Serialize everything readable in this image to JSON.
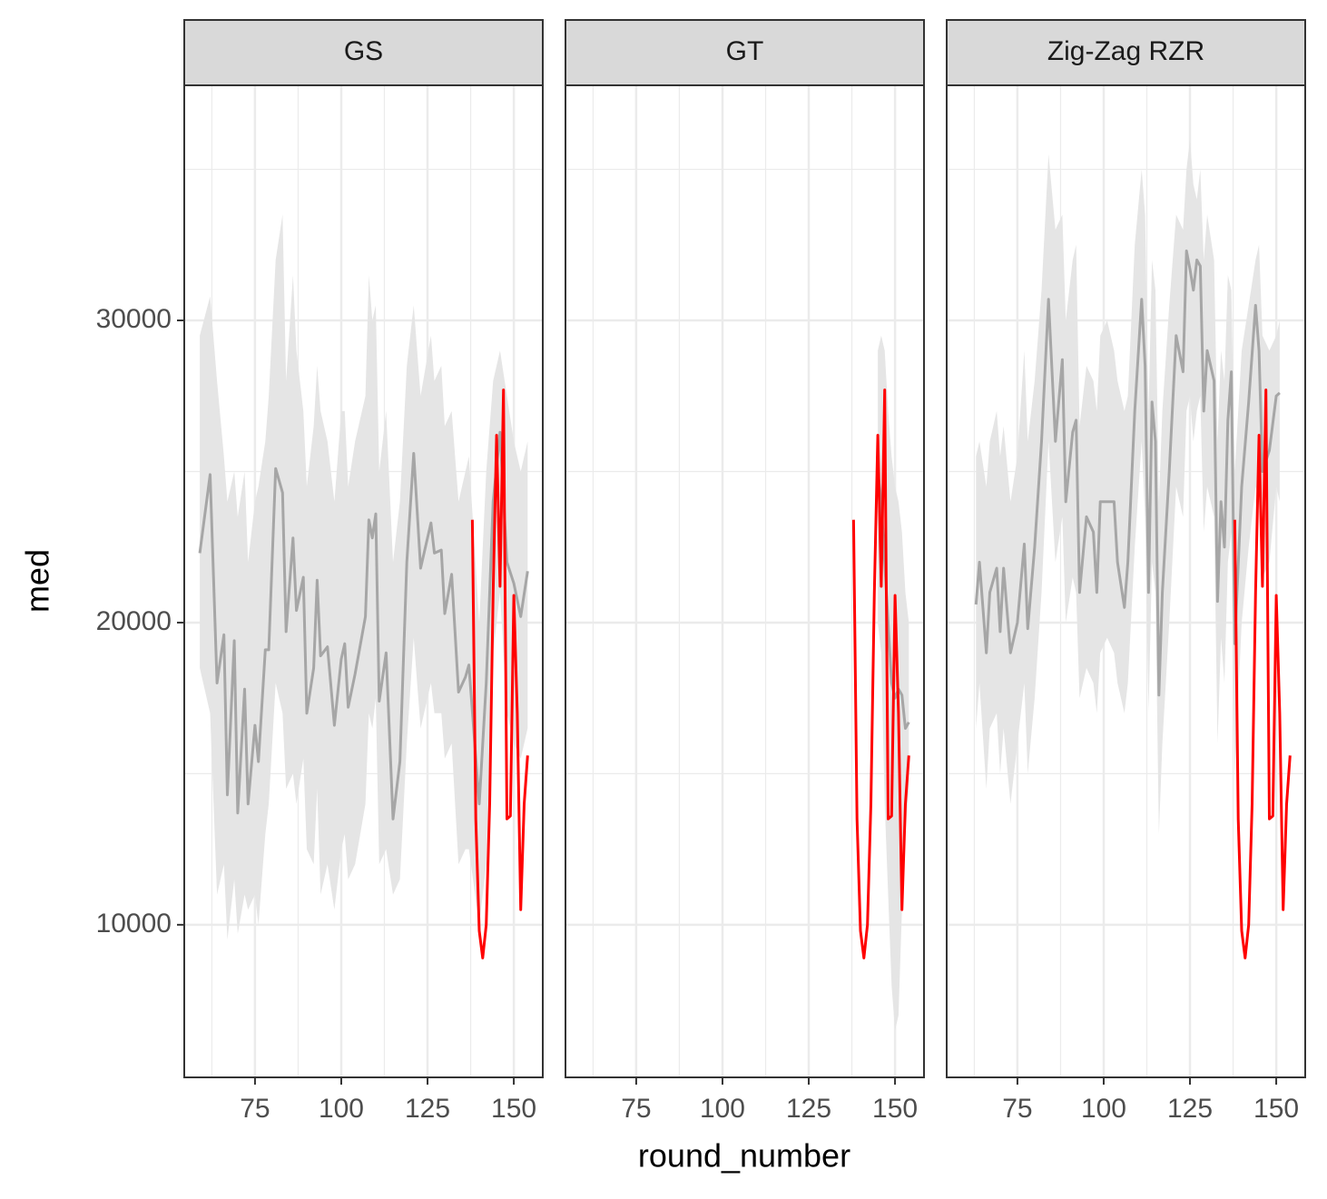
{
  "chart_data": [
    {
      "type": "line",
      "title": "GS",
      "ylabel": "med",
      "xlim": [
        54.5,
        158.4
      ],
      "xticks": [
        75,
        100,
        125,
        150
      ],
      "xminor": [
        62.5,
        87.5,
        112.5,
        137.5
      ],
      "ylim": [
        4950,
        37780
      ],
      "yticks": [
        10000,
        20000,
        30000
      ],
      "yminor": [
        15000,
        25000,
        35000
      ],
      "grid": true,
      "series": [
        {
          "color": "#a6a6a6",
          "band_color": "#e5e5e5",
          "x": [
            59,
            62,
            64,
            66,
            67,
            69,
            70,
            72,
            73,
            75,
            76,
            78,
            79,
            81,
            83,
            84,
            86,
            87,
            89,
            90,
            92,
            93,
            94,
            96,
            98,
            100,
            101,
            102,
            104,
            107,
            108,
            109,
            110,
            111,
            113,
            115,
            117,
            119,
            121,
            123,
            126,
            127,
            129,
            130,
            132,
            134,
            136,
            137,
            140,
            142,
            144,
            146,
            148,
            150,
            152,
            154
          ],
          "values": [
            22300,
            24900,
            18000,
            19600,
            14300,
            19400,
            13700,
            17800,
            14000,
            16600,
            15400,
            19100,
            19100,
            25100,
            24300,
            19700,
            22800,
            20400,
            21500,
            17000,
            18500,
            21400,
            18900,
            19200,
            16600,
            18800,
            19300,
            17200,
            18300,
            20200,
            23400,
            22800,
            23600,
            17400,
            19000,
            13500,
            15400,
            22000,
            25600,
            21800,
            23300,
            22300,
            22400,
            20300,
            21600,
            17700,
            18200,
            18600,
            14000,
            18000,
            24000,
            26300,
            22000,
            21300,
            20200,
            21700
          ],
          "upper": [
            29500,
            30800,
            28000,
            25500,
            24000,
            25000,
            23500,
            25000,
            22000,
            24000,
            24500,
            26000,
            27500,
            32000,
            33500,
            28000,
            31500,
            29000,
            27000,
            24500,
            26500,
            28500,
            27000,
            26000,
            24000,
            27000,
            27000,
            24500,
            26000,
            27500,
            31500,
            30000,
            30500,
            25000,
            27000,
            22000,
            24000,
            28500,
            30500,
            27500,
            29500,
            28000,
            28500,
            26500,
            27000,
            24000,
            25000,
            25500,
            20000,
            25000,
            28000,
            29000,
            27500,
            26000,
            25000,
            26000
          ],
          "lower": [
            18500,
            17000,
            11000,
            12000,
            9500,
            11500,
            9700,
            11000,
            10500,
            11000,
            10000,
            13000,
            14000,
            18000,
            17000,
            14500,
            15000,
            14000,
            15500,
            12500,
            12000,
            14500,
            11000,
            12000,
            10500,
            12500,
            13000,
            11500,
            12000,
            14000,
            17000,
            16500,
            17500,
            12000,
            12500,
            11000,
            11500,
            16000,
            19500,
            16500,
            18000,
            17000,
            17000,
            15500,
            16000,
            12000,
            12500,
            12500,
            10000,
            12000,
            19000,
            21000,
            17000,
            16000,
            15500,
            16500
          ]
        },
        {
          "color": "#ff0000",
          "x": [
            138,
            139,
            140,
            141,
            142,
            143,
            144,
            145,
            146,
            147,
            148,
            149,
            150,
            151,
            152,
            153,
            154
          ],
          "values": [
            23400,
            13500,
            9800,
            8900,
            10000,
            14000,
            21000,
            26200,
            21200,
            27700,
            13500,
            13600,
            20900,
            17000,
            10500,
            14000,
            15600
          ]
        }
      ]
    },
    {
      "type": "line",
      "title": "GT",
      "xlabel": "round_number",
      "xlim": [
        54.5,
        158.4
      ],
      "xticks": [
        75,
        100,
        125,
        150
      ],
      "xminor": [
        62.5,
        87.5,
        112.5,
        137.5
      ],
      "ylim": [
        4950,
        37780
      ],
      "yticks": [
        10000,
        20000,
        30000
      ],
      "yminor": [
        15000,
        25000,
        35000
      ],
      "grid": true,
      "series": [
        {
          "color": "#a6a6a6",
          "band_color": "#e5e5e5",
          "x": [
            145,
            146,
            147,
            148,
            149,
            150,
            151,
            152,
            153,
            154
          ],
          "values": [
            25000,
            24000,
            22000,
            20000,
            18000,
            17500,
            17800,
            17600,
            16500,
            16700
          ],
          "upper": [
            29000,
            29500,
            29000,
            27000,
            25500,
            24500,
            24000,
            23000,
            21000,
            20000
          ],
          "lower": [
            20000,
            19000,
            14000,
            11000,
            8000,
            6500,
            7000,
            10500,
            13000,
            14500
          ]
        },
        {
          "color": "#ff0000",
          "x": [
            138,
            139,
            140,
            141,
            142,
            143,
            144,
            145,
            146,
            147,
            148,
            149,
            150,
            151,
            152,
            153,
            154
          ],
          "values": [
            23400,
            13500,
            9800,
            8900,
            10000,
            14000,
            21000,
            26200,
            21200,
            27700,
            13500,
            13600,
            20900,
            17000,
            10500,
            14000,
            15600
          ]
        }
      ]
    },
    {
      "type": "line",
      "title": "Zig-Zag RZR",
      "xlim": [
        54.5,
        158.4
      ],
      "xticks": [
        75,
        100,
        125,
        150
      ],
      "xminor": [
        62.5,
        87.5,
        112.5,
        137.5
      ],
      "ylim": [
        4950,
        37780
      ],
      "yticks": [
        10000,
        20000,
        30000
      ],
      "yminor": [
        15000,
        25000,
        35000
      ],
      "grid": true,
      "series": [
        {
          "color": "#a6a6a6",
          "band_color": "#e5e5e5",
          "x": [
            63,
            64,
            66,
            67,
            69,
            70,
            71,
            73,
            75,
            77,
            78,
            80,
            82,
            84,
            86,
            88,
            89,
            91,
            92,
            93,
            95,
            97,
            98,
            99,
            101,
            103,
            104,
            106,
            107,
            109,
            111,
            112,
            113,
            114,
            115,
            116,
            117,
            119,
            121,
            123,
            124,
            125,
            126,
            127,
            128,
            129,
            130,
            132,
            133,
            134,
            135,
            136,
            137,
            138,
            140,
            142,
            144,
            145,
            146,
            148,
            150,
            151
          ],
          "values": [
            20600,
            22000,
            19000,
            21000,
            21800,
            19700,
            21800,
            19000,
            20000,
            22600,
            19800,
            22500,
            26000,
            30700,
            26000,
            28700,
            24000,
            26300,
            26700,
            21000,
            23500,
            23000,
            21000,
            24000,
            24000,
            24000,
            22000,
            20500,
            22000,
            27000,
            30700,
            28500,
            21000,
            27300,
            26000,
            17600,
            21000,
            25000,
            29500,
            28300,
            32300,
            31700,
            31000,
            32000,
            31800,
            27000,
            29000,
            28000,
            20700,
            24000,
            22500,
            26700,
            28300,
            19300,
            24500,
            27300,
            30500,
            29000,
            25000,
            25700,
            27500,
            27600
          ],
          "upper": [
            25500,
            26000,
            24500,
            26000,
            27000,
            25500,
            26500,
            24000,
            25500,
            29000,
            26000,
            28000,
            31000,
            35500,
            33000,
            33500,
            30000,
            32000,
            32500,
            26500,
            28500,
            28000,
            27000,
            29500,
            30000,
            29000,
            28000,
            27000,
            27500,
            32500,
            35000,
            33500,
            27000,
            32000,
            31000,
            24000,
            27000,
            30500,
            33500,
            33000,
            35000,
            36000,
            34500,
            34000,
            35000,
            32000,
            33500,
            32000,
            26000,
            29000,
            28000,
            31500,
            31000,
            25000,
            29000,
            30500,
            32000,
            32500,
            29500,
            29000,
            29500,
            30000
          ],
          "lower": [
            16500,
            18000,
            14500,
            16500,
            17000,
            15000,
            16500,
            14000,
            16000,
            18000,
            15000,
            17500,
            21000,
            26000,
            22000,
            23500,
            20000,
            21500,
            21000,
            17500,
            18500,
            18000,
            17000,
            19000,
            19500,
            19000,
            18000,
            17000,
            18000,
            22500,
            26000,
            23500,
            17000,
            22000,
            21000,
            13000,
            16000,
            20000,
            24500,
            23500,
            27000,
            27500,
            26000,
            27000,
            27500,
            23000,
            24500,
            23500,
            16000,
            19500,
            18000,
            22000,
            23000,
            15000,
            20000,
            22500,
            24500,
            24000,
            21500,
            22000,
            24500,
            24000
          ]
        },
        {
          "color": "#ff0000",
          "x": [
            138,
            139,
            140,
            141,
            142,
            143,
            144,
            145,
            146,
            147,
            148,
            149,
            150,
            151,
            152,
            153,
            154
          ],
          "values": [
            23400,
            13500,
            9800,
            8900,
            10000,
            14000,
            21000,
            26200,
            21200,
            27700,
            13500,
            13600,
            20900,
            17000,
            10500,
            14000,
            15600
          ]
        }
      ]
    }
  ]
}
